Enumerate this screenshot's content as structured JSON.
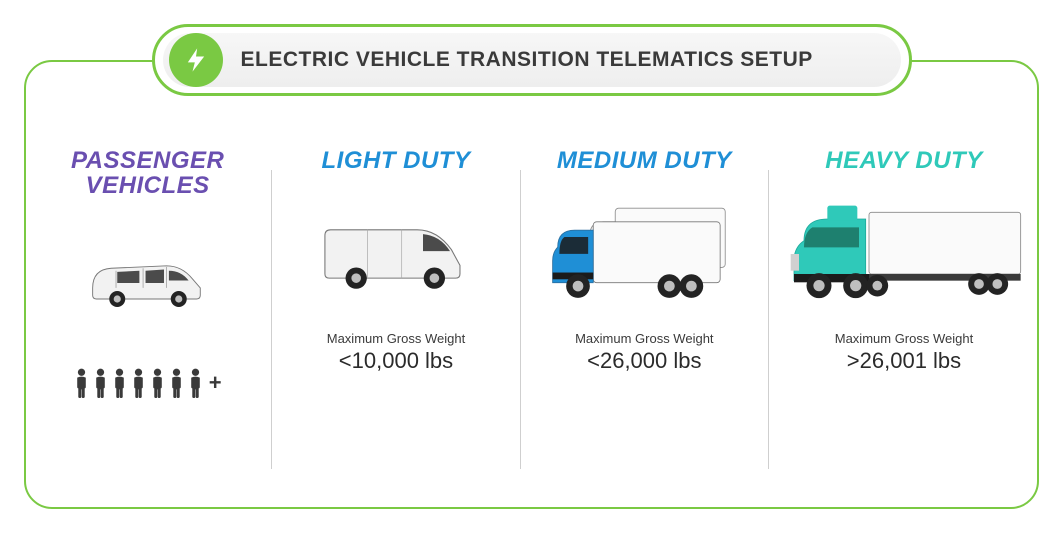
{
  "colors": {
    "panel_border": "#7ac943",
    "pill_border": "#7ac943",
    "pill_fill": "#eeeeee",
    "bolt_bg": "#7ac943",
    "bolt_fg": "#ffffff",
    "title_text": "#3a3a3a",
    "divider": "#cfcfcf",
    "person_fill": "#3a3a3a"
  },
  "title": {
    "text": "ELECTRIC VEHICLE TRANSITION TELEMATICS SETUP",
    "fontsize": 21
  },
  "categories": [
    {
      "key": "passenger",
      "title": "PASSENGER\nVEHICLES",
      "title_color": "#6a4fb0",
      "title_fontsize": 24,
      "people_count": 7,
      "plus_suffix": "+",
      "vehicle": {
        "type": "van",
        "body_color": "#f2f2f2",
        "accent_color": "#2b2b2b",
        "scale": 0.82
      }
    },
    {
      "key": "light",
      "title": "LIGHT DUTY",
      "title_color": "#1f8fd6",
      "title_fontsize": 24,
      "spec_label": "Maximum Gross Weight",
      "spec_value": "<10,000 lbs",
      "vehicle": {
        "type": "cargo_van",
        "body_color": "#f2f2f2",
        "accent_color": "#2b2b2b",
        "scale": 0.92
      }
    },
    {
      "key": "medium",
      "title": "MEDIUM DUTY",
      "title_color": "#1f8fd6",
      "title_fontsize": 24,
      "spec_label": "Maximum Gross Weight",
      "spec_value": "<26,000 lbs",
      "vehicle": {
        "type": "box_truck_pair",
        "body_color": "#f2f2f2",
        "accent_color": "#1f8fd6",
        "scale": 1.0
      }
    },
    {
      "key": "heavy",
      "title": "HEAVY DUTY",
      "title_color": "#2fc9b9",
      "title_fontsize": 24,
      "spec_label": "Maximum Gross Weight",
      "spec_value": ">26,001 lbs",
      "vehicle": {
        "type": "semi",
        "body_color": "#f2f2f2",
        "accent_color": "#2fc9b9",
        "scale": 1.0
      }
    }
  ]
}
